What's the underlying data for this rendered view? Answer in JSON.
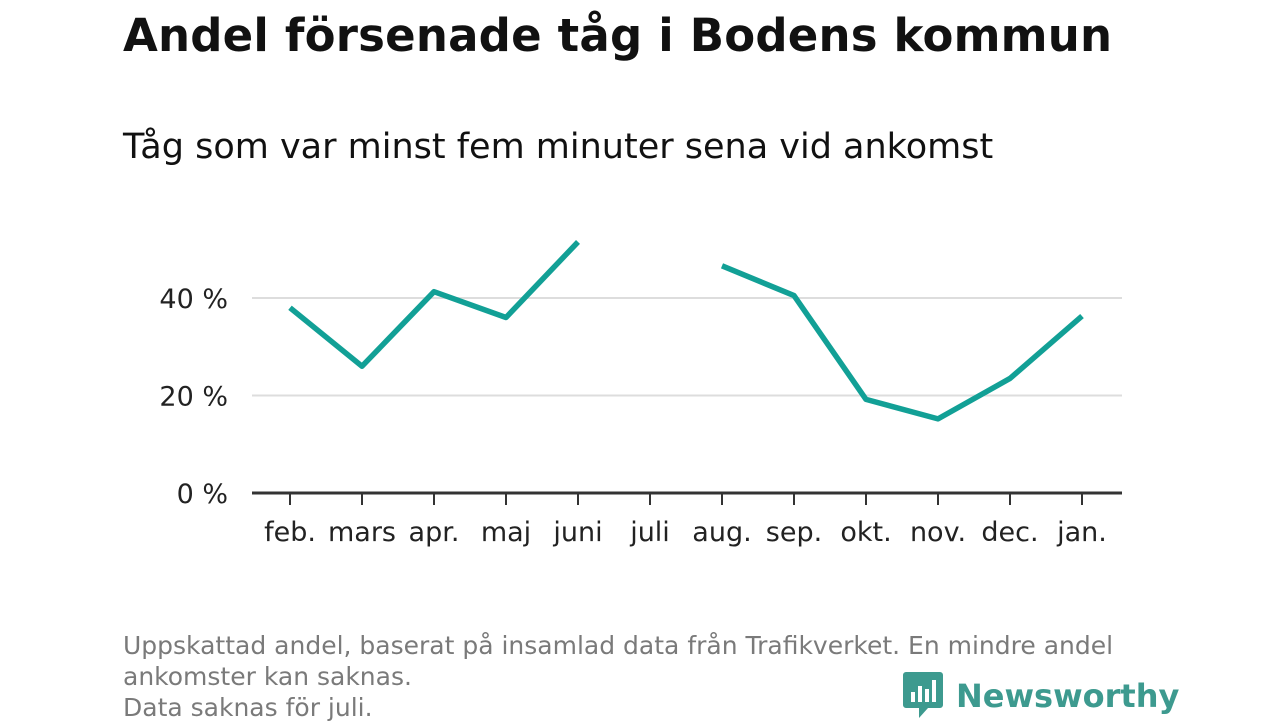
{
  "title": "Andel försenade tåg i Bodens kommun",
  "subtitle": "Tåg som var minst fem minuter sena vid ankomst",
  "footnote": {
    "line1": "Uppskattad andel, baserat på insamlad data från Trafikverket. En mindre andel",
    "line2": "ankomster kan saknas.",
    "line3": "Data saknas för juli."
  },
  "brand": {
    "name": "Newsworthy",
    "icon": "bar-chart-speech-bubble-icon"
  },
  "colors": {
    "line": "#12a096",
    "grid": "#dddddd",
    "axis": "#333333",
    "brand": "#3d9a8f",
    "footnote": "#7a7a7a"
  },
  "chart_data": {
    "type": "line",
    "title": "Andel försenade tåg i Bodens kommun",
    "subtitle": "Tåg som var minst fem minuter sena vid ankomst",
    "xlabel": "",
    "ylabel": "",
    "categories": [
      "feb.",
      "mars",
      "apr.",
      "maj",
      "juni",
      "juli",
      "aug.",
      "sep.",
      "okt.",
      "nov.",
      "dec.",
      "jan."
    ],
    "series": [
      {
        "values": [
          38,
          26,
          41.3,
          36,
          51.5,
          null,
          46.6,
          40.5,
          19.2,
          15.2,
          23.5,
          36.3
        ]
      }
    ],
    "yticks": [
      0,
      20,
      40
    ],
    "ytick_labels": [
      "0 %",
      "20 %",
      "40 %"
    ],
    "ylim": [
      0,
      55
    ],
    "grid": "horizontal",
    "legend": "none"
  }
}
